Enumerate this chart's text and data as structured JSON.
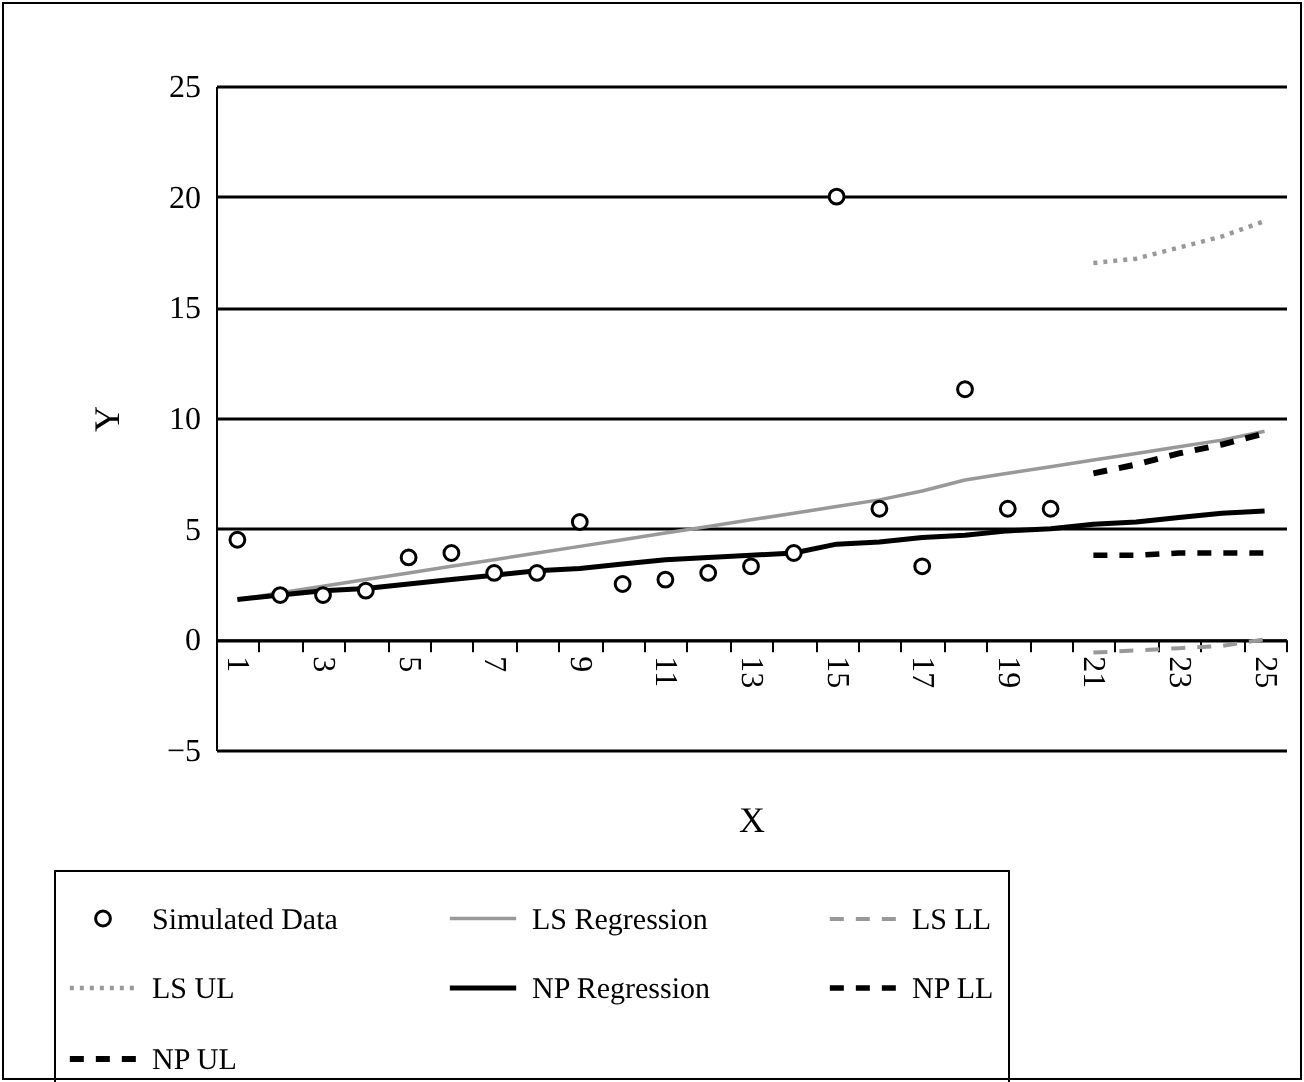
{
  "chart_data": {
    "type": "line",
    "xlabel": "X",
    "ylabel": "Y",
    "categories": [
      "1",
      null,
      "3",
      null,
      "5",
      null,
      "7",
      null,
      "9",
      null,
      "11",
      null,
      "13",
      null,
      "15",
      null,
      "17",
      null,
      "19",
      null,
      "21",
      null,
      "23",
      null,
      "25"
    ],
    "ylim": [
      -5,
      25
    ],
    "yticks": [
      -5,
      0,
      5,
      10,
      15,
      20,
      25
    ],
    "grid": "y",
    "legend": "bottom",
    "series": [
      {
        "name": "Simulated Data",
        "type": "scatter",
        "marker": "circle",
        "color": "#000000",
        "values": [
          4.5,
          2.0,
          2.0,
          2.2,
          3.7,
          3.9,
          3.0,
          3.0,
          5.3,
          2.5,
          2.7,
          3.0,
          3.3,
          3.9,
          20.0,
          5.9,
          3.3,
          11.3,
          5.9,
          5.9,
          null,
          null,
          null,
          null,
          null
        ]
      },
      {
        "name": "LS Regression",
        "type": "line",
        "line_style": "solid",
        "color": "#999999",
        "values": [
          1.8,
          2.1,
          2.4,
          2.7,
          3.0,
          3.3,
          3.6,
          3.9,
          4.2,
          4.5,
          4.8,
          5.1,
          5.4,
          5.7,
          6.0,
          6.3,
          6.7,
          7.2,
          7.5,
          7.8,
          8.1,
          8.4,
          8.7,
          9.0,
          9.4
        ]
      },
      {
        "name": "LS LL",
        "type": "line",
        "line_style": "dashed",
        "color": "#999999",
        "values": [
          null,
          null,
          null,
          null,
          null,
          null,
          null,
          null,
          null,
          null,
          null,
          null,
          null,
          null,
          null,
          null,
          null,
          null,
          null,
          null,
          -0.6,
          -0.5,
          -0.4,
          -0.3,
          0.0
        ]
      },
      {
        "name": "LS UL",
        "type": "line",
        "line_style": "dotted",
        "color": "#999999",
        "values": [
          null,
          null,
          null,
          null,
          null,
          null,
          null,
          null,
          null,
          null,
          null,
          null,
          null,
          null,
          null,
          null,
          null,
          null,
          null,
          null,
          17.0,
          17.2,
          17.7,
          18.2,
          18.9
        ]
      },
      {
        "name": "NP Regression",
        "type": "line",
        "line_style": "solid",
        "color": "#000000",
        "values": [
          1.8,
          2.0,
          2.2,
          2.3,
          2.5,
          2.7,
          2.9,
          3.1,
          3.2,
          3.4,
          3.6,
          3.7,
          3.8,
          3.9,
          4.3,
          4.4,
          4.6,
          4.7,
          4.9,
          5.0,
          5.2,
          5.3,
          5.5,
          5.7,
          5.8
        ]
      },
      {
        "name": "NP LL",
        "type": "line",
        "line_style": "dashed",
        "color": "#000000",
        "values": [
          null,
          null,
          null,
          null,
          null,
          null,
          null,
          null,
          null,
          null,
          null,
          null,
          null,
          null,
          null,
          null,
          null,
          null,
          null,
          null,
          3.8,
          3.8,
          3.9,
          3.9,
          3.9
        ]
      },
      {
        "name": "NP UL",
        "type": "line",
        "line_style": "dashed",
        "color": "#000000",
        "values": [
          null,
          null,
          null,
          null,
          null,
          null,
          null,
          null,
          null,
          null,
          null,
          null,
          null,
          null,
          null,
          null,
          null,
          null,
          null,
          null,
          7.5,
          7.9,
          8.4,
          8.8,
          9.3
        ]
      }
    ]
  }
}
